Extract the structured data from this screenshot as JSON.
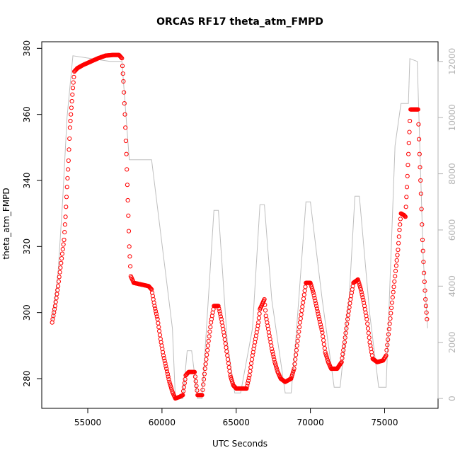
{
  "chart_data": {
    "type": "line",
    "title": "ORCAS RF17 theta_atm_FMPD",
    "xlabel": "UTC Seconds",
    "ylabel": "theta_atm_FMPD",
    "xlim": [
      51900,
      78600
    ],
    "ylim": [
      271,
      382
    ],
    "x_ticks": [
      55000,
      60000,
      65000,
      70000,
      75000
    ],
    "x_tick_labels": [
      "55000",
      "60000",
      "65000",
      "70000",
      "75000"
    ],
    "y_ticks": [
      280,
      300,
      320,
      340,
      360,
      380
    ],
    "y_tick_labels": [
      "280",
      "300",
      "320",
      "340",
      "360",
      "380"
    ],
    "y2lim": [
      -350,
      12700
    ],
    "y2_ticks": [
      0,
      2000,
      4000,
      6000,
      8000,
      10000,
      12000
    ],
    "y2_tick_labels": [
      "0",
      "2000",
      "4000",
      "6000",
      "8000",
      "10000",
      "12000"
    ],
    "grid": false,
    "colors": {
      "primary": "#ff0000",
      "secondary": "#bebebe",
      "right_axis": "#b3b3b3"
    },
    "series": [
      {
        "style": "points",
        "axis": "left",
        "color": "#ff0000",
        "points": [
          [
            52600,
            297
          ],
          [
            52800,
            302
          ],
          [
            53000,
            308
          ],
          [
            53200,
            315
          ],
          [
            53400,
            322
          ],
          [
            53500,
            329
          ],
          [
            53600,
            338
          ],
          [
            53700,
            346
          ],
          [
            53800,
            356
          ],
          [
            53900,
            362
          ],
          [
            54000,
            368
          ],
          [
            54100,
            373
          ],
          [
            54300,
            374
          ],
          [
            54700,
            375
          ],
          [
            55200,
            376
          ],
          [
            55700,
            377
          ],
          [
            56200,
            377.8
          ],
          [
            56700,
            378
          ],
          [
            57100,
            378
          ],
          [
            57300,
            377
          ],
          [
            57400,
            370
          ],
          [
            57500,
            360
          ],
          [
            57600,
            348
          ],
          [
            57700,
            334
          ],
          [
            57800,
            320
          ],
          [
            57900,
            311
          ],
          [
            58100,
            309
          ],
          [
            58600,
            308.5
          ],
          [
            59100,
            308
          ],
          [
            59300,
            307
          ],
          [
            59500,
            302
          ],
          [
            59700,
            298
          ],
          [
            59900,
            292
          ],
          [
            60100,
            287
          ],
          [
            60300,
            283
          ],
          [
            60500,
            279
          ],
          [
            60700,
            276
          ],
          [
            60900,
            274
          ],
          [
            61200,
            274.5
          ],
          [
            61400,
            275
          ],
          [
            61600,
            281
          ],
          [
            61800,
            282
          ],
          [
            62000,
            282
          ],
          [
            62200,
            282
          ],
          [
            62400,
            275
          ],
          [
            62700,
            275
          ],
          [
            62900,
            283
          ],
          [
            63100,
            290
          ],
          [
            63300,
            297
          ],
          [
            63500,
            302
          ],
          [
            63800,
            302
          ],
          [
            64000,
            298
          ],
          [
            64200,
            293
          ],
          [
            64400,
            287
          ],
          [
            64600,
            281
          ],
          [
            64800,
            278
          ],
          [
            65000,
            277
          ],
          [
            65400,
            277
          ],
          [
            65700,
            277
          ],
          [
            65900,
            281
          ],
          [
            66100,
            287
          ],
          [
            66300,
            292
          ],
          [
            66500,
            297
          ],
          [
            66600,
            301
          ],
          [
            66700,
            302
          ],
          [
            66800,
            303
          ],
          [
            66900,
            304
          ],
          [
            67000,
            299
          ],
          [
            67200,
            294
          ],
          [
            67400,
            289
          ],
          [
            67600,
            285
          ],
          [
            67800,
            282
          ],
          [
            68000,
            280
          ],
          [
            68300,
            279
          ],
          [
            68700,
            280
          ],
          [
            68900,
            283
          ],
          [
            69100,
            290
          ],
          [
            69300,
            297
          ],
          [
            69500,
            303
          ],
          [
            69700,
            309
          ],
          [
            70000,
            309
          ],
          [
            70200,
            306
          ],
          [
            70400,
            302
          ],
          [
            70600,
            298
          ],
          [
            70800,
            294
          ],
          [
            71000,
            288
          ],
          [
            71200,
            285
          ],
          [
            71400,
            283
          ],
          [
            71800,
            283
          ],
          [
            72100,
            285
          ],
          [
            72300,
            291
          ],
          [
            72500,
            298
          ],
          [
            72700,
            304
          ],
          [
            72900,
            309
          ],
          [
            73200,
            310
          ],
          [
            73400,
            307
          ],
          [
            73600,
            303
          ],
          [
            73800,
            298
          ],
          [
            74000,
            291
          ],
          [
            74200,
            286
          ],
          [
            74500,
            285
          ],
          [
            74900,
            285.5
          ],
          [
            75100,
            287
          ],
          [
            75300,
            295
          ],
          [
            75500,
            303
          ],
          [
            75700,
            311
          ],
          [
            75900,
            319
          ],
          [
            76000,
            325
          ],
          [
            76100,
            330
          ],
          [
            76300,
            329.5
          ],
          [
            76400,
            329
          ],
          [
            76500,
            338
          ],
          [
            76600,
            348
          ],
          [
            76700,
            358
          ],
          [
            76750,
            361.5
          ],
          [
            77100,
            361.5
          ],
          [
            77250,
            361.5
          ],
          [
            77350,
            348
          ],
          [
            77450,
            336
          ],
          [
            77550,
            322
          ],
          [
            77650,
            312
          ],
          [
            77750,
            304
          ],
          [
            77850,
            298
          ]
        ]
      },
      {
        "style": "line",
        "axis": "right",
        "color": "#bebebe",
        "points": [
          [
            52650,
            2800
          ],
          [
            53000,
            4500
          ],
          [
            53300,
            7000
          ],
          [
            53600,
            10000
          ],
          [
            54000,
            12200
          ],
          [
            56500,
            12000
          ],
          [
            57300,
            12000
          ],
          [
            57800,
            8500
          ],
          [
            59300,
            8500
          ],
          [
            60700,
            2500
          ],
          [
            60900,
            0
          ],
          [
            61400,
            0
          ],
          [
            61700,
            1700
          ],
          [
            62000,
            1700
          ],
          [
            62400,
            0
          ],
          [
            62700,
            0
          ],
          [
            63500,
            6700
          ],
          [
            63800,
            6700
          ],
          [
            64400,
            2000
          ],
          [
            64900,
            200
          ],
          [
            65300,
            200
          ],
          [
            66100,
            2500
          ],
          [
            66600,
            6900
          ],
          [
            66900,
            6900
          ],
          [
            67400,
            3500
          ],
          [
            68300,
            200
          ],
          [
            68700,
            200
          ],
          [
            69000,
            2000
          ],
          [
            69700,
            7000
          ],
          [
            70000,
            7000
          ],
          [
            70800,
            3500
          ],
          [
            71600,
            400
          ],
          [
            72000,
            400
          ],
          [
            72600,
            3500
          ],
          [
            73000,
            7200
          ],
          [
            73300,
            7200
          ],
          [
            74000,
            3000
          ],
          [
            74600,
            400
          ],
          [
            75100,
            400
          ],
          [
            75700,
            9000
          ],
          [
            76100,
            10500
          ],
          [
            76600,
            10500
          ],
          [
            76700,
            12100
          ],
          [
            77200,
            12000
          ],
          [
            77600,
            5000
          ],
          [
            77900,
            2500
          ]
        ]
      }
    ]
  }
}
